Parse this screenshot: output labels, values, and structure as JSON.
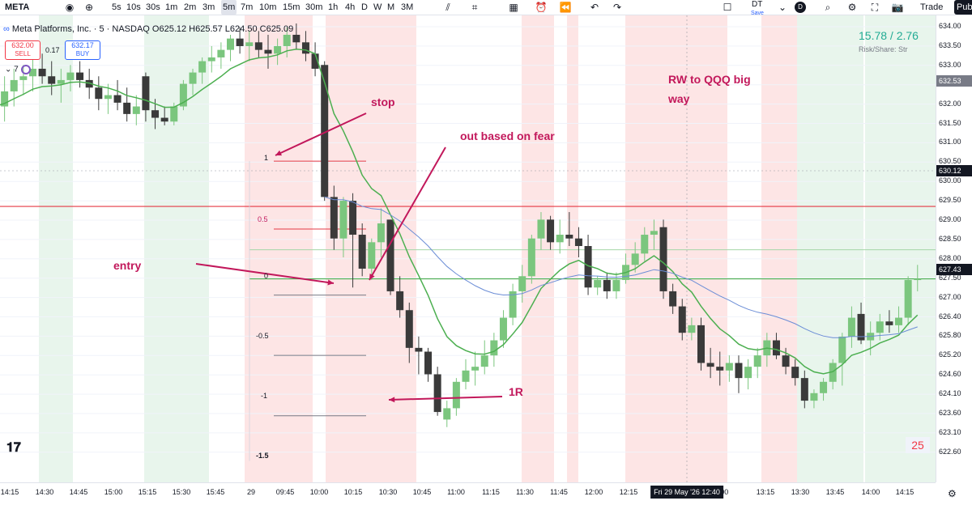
{
  "toolbar": {
    "symbol": "META",
    "intervals": [
      "5s",
      "10s",
      "30s",
      "1m",
      "2m",
      "3m",
      "5m",
      "7m",
      "10m",
      "15m",
      "30m",
      "1h",
      "4h",
      "D",
      "W",
      "M",
      "3M"
    ],
    "active_interval": "5m",
    "layout_label": "DT",
    "layout_sub": "Save",
    "avatar_letter": "D",
    "trade_label": "Trade",
    "publish_label": "Pub"
  },
  "legend": {
    "title": "Meta Platforms, Inc. · 5 · NASDAQ",
    "ohlc": "O625.12 H625.57 L624.50 C625.09",
    "sell_price": "632.00",
    "sell_label": "SELL",
    "spread": "0.17",
    "buy_price": "632.17",
    "buy_label": "BUY",
    "indicator_count": "7"
  },
  "top_right": {
    "value": "15.78 / 2.76",
    "sub": "Risk/Share:  Str"
  },
  "badge": "25",
  "annotations": {
    "stop": "stop",
    "out_fear": "out based on fear",
    "rw": "RW to QQQ big",
    "rw2": "way",
    "entry": "entry",
    "one_r": "1R"
  },
  "fib_labels": [
    "1",
    "0.5",
    "0",
    "-0.5",
    "-1",
    "-1.5"
  ],
  "price_axis": {
    "ticks": [
      "634.00",
      "633.50",
      "633.00",
      "632.50",
      "632.00",
      "631.50",
      "631.00",
      "630.50",
      "630.00",
      "629.50",
      "629.00",
      "628.50",
      "628.00",
      "627.50",
      "627.00",
      "626.40",
      "625.80",
      "625.20",
      "624.60",
      "624.10",
      "623.60",
      "623.10",
      "622.60"
    ],
    "tags": [
      {
        "text": "632.53",
        "bg": "#787b86",
        "color": "#ffffff"
      },
      {
        "text": "630.12",
        "bg": "#131722",
        "color": "#ffffff"
      },
      {
        "text": "627.43",
        "bg": "#131722",
        "color": "#ffffff"
      }
    ]
  },
  "time_axis": {
    "ticks": [
      "14:15",
      "14:30",
      "14:45",
      "15:00",
      "15:15",
      "15:30",
      "15:45",
      "29",
      "09:45",
      "10:00",
      "10:15",
      "10:30",
      "10:45",
      "11:00",
      "11:15",
      "11:30",
      "11:45",
      "12:00",
      "12:15",
      "13:00",
      "13:15",
      "13:30",
      "13:45",
      "14:00",
      "14:15"
    ],
    "highlight": "Fri 29 May '26   12:40"
  },
  "colors": {
    "up": "#7bc67e",
    "down": "#3a3a3a",
    "ema": "#4caf50",
    "vwap": "#6b8dd6",
    "annotation": "#c2185b",
    "red_band": "#fde2e2",
    "green_band": "#e6f4ea"
  },
  "chart_data": {
    "type": "candlestick",
    "y_range": [
      622.4,
      634.2
    ],
    "bars_open_high_low_close": [
      [
        631.6,
        632.3,
        630.8,
        632.0
      ],
      [
        632.0,
        632.8,
        631.6,
        632.4
      ],
      [
        632.4,
        633.0,
        632.0,
        632.7
      ],
      [
        632.7,
        633.1,
        632.3,
        632.8
      ],
      [
        632.8,
        633.3,
        632.4,
        633.0
      ],
      [
        633.0,
        633.4,
        632.6,
        632.8
      ],
      [
        632.8,
        633.2,
        632.3,
        632.6
      ],
      [
        632.6,
        633.0,
        632.1,
        632.7
      ],
      [
        632.7,
        633.1,
        632.4,
        632.9
      ],
      [
        632.9,
        633.2,
        632.5,
        632.7
      ],
      [
        632.7,
        633.0,
        632.2,
        632.5
      ],
      [
        632.5,
        632.8,
        631.9,
        632.2
      ],
      [
        632.2,
        632.6,
        631.8,
        632.3
      ],
      [
        632.3,
        632.7,
        631.9,
        632.1
      ],
      [
        632.1,
        632.5,
        631.6,
        631.8
      ],
      [
        631.8,
        632.3,
        631.5,
        632.0
      ],
      [
        632.8,
        632.9,
        631.6,
        631.9
      ],
      [
        631.9,
        632.2,
        631.4,
        631.7
      ],
      [
        631.7,
        632.0,
        631.5,
        631.6
      ],
      [
        631.6,
        632.1,
        631.5,
        632.0
      ],
      [
        632.0,
        632.7,
        631.9,
        632.6
      ],
      [
        632.6,
        633.0,
        632.3,
        632.9
      ],
      [
        632.9,
        633.3,
        632.6,
        633.2
      ],
      [
        633.2,
        633.6,
        632.9,
        633.3
      ],
      [
        633.3,
        633.7,
        633.0,
        633.5
      ],
      [
        633.5,
        633.9,
        633.2,
        633.8
      ],
      [
        633.8,
        634.1,
        633.4,
        633.6
      ],
      [
        633.6,
        634.0,
        633.2,
        633.7
      ],
      [
        633.7,
        634.0,
        633.3,
        633.5
      ],
      [
        633.5,
        633.9,
        633.0,
        633.4
      ],
      [
        633.4,
        633.8,
        633.1,
        633.6
      ],
      [
        633.6,
        634.1,
        633.3,
        633.9
      ],
      [
        633.9,
        634.2,
        633.5,
        633.7
      ],
      [
        633.7,
        634.0,
        633.2,
        633.4
      ],
      [
        633.4,
        633.7,
        632.8,
        633.0
      ],
      [
        633.1,
        633.2,
        629.5,
        629.6
      ],
      [
        629.6,
        629.9,
        628.2,
        628.5
      ],
      [
        628.5,
        629.6,
        628.0,
        629.5
      ],
      [
        629.5,
        629.7,
        627.2,
        628.6
      ],
      [
        628.6,
        628.9,
        627.5,
        627.7
      ],
      [
        627.7,
        628.5,
        627.4,
        628.4
      ],
      [
        628.4,
        629.3,
        628.0,
        628.9
      ],
      [
        629.0,
        629.0,
        627.0,
        627.1
      ],
      [
        627.1,
        627.5,
        626.4,
        626.6
      ],
      [
        626.6,
        626.8,
        625.2,
        625.6
      ],
      [
        625.6,
        625.9,
        624.9,
        625.5
      ],
      [
        625.5,
        625.6,
        624.7,
        624.9
      ],
      [
        624.9,
        625.1,
        623.8,
        623.9
      ],
      [
        623.7,
        624.2,
        623.5,
        624.0
      ],
      [
        624.0,
        624.8,
        623.8,
        624.7
      ],
      [
        624.7,
        625.3,
        624.5,
        625.0
      ],
      [
        625.0,
        625.5,
        624.6,
        625.1
      ],
      [
        625.1,
        625.8,
        624.9,
        625.4
      ],
      [
        625.4,
        626.0,
        625.1,
        625.8
      ],
      [
        625.8,
        626.6,
        625.6,
        626.4
      ],
      [
        626.4,
        627.3,
        626.2,
        627.1
      ],
      [
        627.1,
        627.8,
        626.8,
        627.5
      ],
      [
        627.5,
        628.6,
        627.3,
        628.5
      ],
      [
        628.5,
        629.2,
        628.2,
        629.0
      ],
      [
        629.0,
        629.1,
        628.2,
        628.4
      ],
      [
        628.4,
        629.0,
        628.1,
        628.6
      ],
      [
        628.6,
        629.2,
        628.3,
        628.5
      ],
      [
        628.5,
        628.8,
        628.0,
        628.3
      ],
      [
        628.3,
        628.6,
        627.0,
        627.2
      ],
      [
        627.2,
        627.5,
        627.0,
        627.4
      ],
      [
        627.4,
        627.6,
        626.9,
        627.1
      ],
      [
        627.1,
        627.6,
        626.9,
        627.4
      ],
      [
        627.4,
        628.1,
        627.3,
        627.8
      ],
      [
        627.8,
        628.4,
        627.6,
        628.1
      ],
      [
        628.1,
        628.8,
        627.9,
        628.6
      ],
      [
        628.6,
        629.0,
        628.2,
        628.7
      ],
      [
        628.8,
        629.0,
        626.9,
        627.1
      ],
      [
        627.1,
        627.3,
        626.5,
        626.7
      ],
      [
        626.7,
        626.9,
        625.8,
        626.0
      ],
      [
        626.0,
        626.4,
        625.8,
        626.2
      ],
      [
        626.2,
        626.4,
        625.0,
        625.2
      ],
      [
        625.2,
        625.6,
        624.8,
        625.1
      ],
      [
        625.1,
        625.5,
        624.6,
        625.0
      ],
      [
        625.0,
        625.4,
        624.7,
        625.2
      ],
      [
        625.2,
        625.4,
        624.4,
        624.8
      ],
      [
        624.8,
        625.3,
        624.5,
        625.1
      ],
      [
        625.1,
        625.6,
        624.8,
        625.4
      ],
      [
        625.4,
        626.0,
        625.1,
        625.8
      ],
      [
        625.8,
        626.0,
        625.3,
        625.4
      ],
      [
        625.4,
        625.6,
        624.9,
        625.1
      ],
      [
        625.1,
        625.3,
        624.6,
        624.8
      ],
      [
        624.8,
        625.0,
        624.0,
        624.2
      ],
      [
        624.2,
        624.5,
        624.0,
        624.4
      ],
      [
        624.4,
        624.8,
        624.2,
        624.7
      ],
      [
        624.7,
        625.3,
        624.5,
        625.2
      ],
      [
        625.2,
        626.0,
        624.6,
        625.9
      ],
      [
        625.9,
        626.7,
        625.6,
        626.4
      ],
      [
        626.5,
        626.8,
        625.7,
        625.8
      ],
      [
        625.8,
        626.3,
        625.4,
        626.0
      ],
      [
        626.0,
        626.5,
        625.8,
        626.3
      ],
      [
        626.3,
        626.6,
        626.0,
        626.2
      ],
      [
        626.2,
        626.7,
        626.0,
        626.4
      ],
      [
        626.4,
        627.5,
        626.2,
        627.4
      ],
      [
        627.4,
        627.8,
        627.1,
        627.43
      ]
    ],
    "horizontal_levels": [
      629.35,
      628.2,
      627.43
    ],
    "fib_levels": {
      "1": 630.55,
      "0.5": 628.75,
      "0": 627.0,
      "-0.5": 625.4,
      "-1": 623.8,
      "-1.5": 622.6
    }
  }
}
